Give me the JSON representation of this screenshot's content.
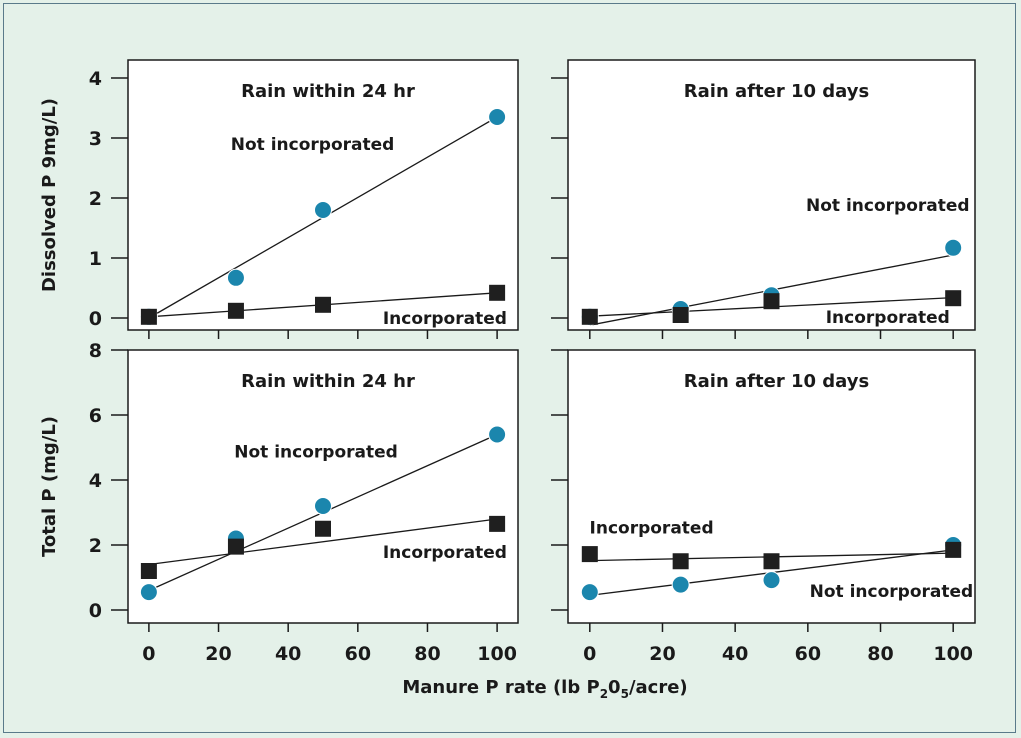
{
  "chart_data": {
    "type": "scatter",
    "x_label_parts": [
      "Manure P rate (lb P",
      "2",
      "0",
      "5",
      "/acre)"
    ],
    "panels": [
      {
        "id": "dissolved-24hr",
        "title": "Rain within 24 hr",
        "ylabel": "Dissolved P 9mg/L)",
        "xlim": [
          -6,
          106
        ],
        "ylim": [
          -0.2,
          4.3
        ],
        "xticks": [
          0,
          20,
          40,
          60,
          80,
          100
        ],
        "show_xtick_labels": false,
        "yticks": [
          0,
          1,
          2,
          3,
          4
        ],
        "show_ytick_labels": true,
        "series": [
          {
            "name": "Not incorporated",
            "marker": "circle",
            "color": "#1b86ad",
            "x": [
              0,
              25,
              50,
              100
            ],
            "y": [
              0.02,
              0.67,
              1.8,
              3.35
            ],
            "fit": [
              [
                0,
                0.0
              ],
              [
                100,
                3.35
              ]
            ]
          },
          {
            "name": "Incorporated",
            "marker": "square",
            "color": "#1f1f1f",
            "x": [
              0,
              25,
              50,
              100
            ],
            "y": [
              0.02,
              0.12,
              0.22,
              0.42
            ],
            "fit": [
              [
                0,
                0.02
              ],
              [
                100,
                0.42
              ]
            ]
          }
        ],
        "labels": [
          {
            "text": "Not incorporated",
            "x": 47,
            "y": 2.8
          },
          {
            "text": "Incorporated",
            "x": 85,
            "y": -0.1
          }
        ]
      },
      {
        "id": "dissolved-10days",
        "title": "Rain after 10 days",
        "ylabel": "",
        "xlim": [
          -6,
          106
        ],
        "ylim": [
          -0.2,
          4.3
        ],
        "xticks": [
          0,
          20,
          40,
          60,
          80,
          100
        ],
        "show_xtick_labels": false,
        "yticks": [
          0,
          1,
          2,
          3,
          4
        ],
        "show_ytick_labels": false,
        "series": [
          {
            "name": "Not incorporated",
            "marker": "circle",
            "color": "#1b86ad",
            "x": [
              0,
              25,
              50,
              100
            ],
            "y": [
              0.02,
              0.15,
              0.38,
              1.17
            ],
            "fit": [
              [
                0,
                -0.12
              ],
              [
                100,
                1.05
              ]
            ]
          },
          {
            "name": "Incorporated",
            "marker": "square",
            "color": "#1f1f1f",
            "x": [
              0,
              25,
              50,
              100
            ],
            "y": [
              0.02,
              0.05,
              0.28,
              0.33
            ],
            "fit": [
              [
                0,
                0.03
              ],
              [
                100,
                0.34
              ]
            ]
          }
        ],
        "labels": [
          {
            "text": "Not incorporated",
            "x": 82,
            "y": 1.78
          },
          {
            "text": "Incorporated",
            "x": 82,
            "y": -0.08
          }
        ]
      },
      {
        "id": "total-24hr",
        "title": "Rain within 24 hr",
        "ylabel": "Total P (mg/L)",
        "xlim": [
          -6,
          106
        ],
        "ylim": [
          -0.4,
          8.0
        ],
        "xticks": [
          0,
          20,
          40,
          60,
          80,
          100
        ],
        "show_xtick_labels": true,
        "yticks": [
          0,
          2,
          4,
          6,
          8
        ],
        "show_ytick_labels": true,
        "series": [
          {
            "name": "Not incorporated",
            "marker": "circle",
            "color": "#1b86ad",
            "x": [
              0,
              25,
              50,
              100
            ],
            "y": [
              0.55,
              2.2,
              3.2,
              5.4
            ],
            "fit": [
              [
                0,
                0.6
              ],
              [
                100,
                5.4
              ]
            ]
          },
          {
            "name": "Incorporated",
            "marker": "square",
            "color": "#1f1f1f",
            "x": [
              0,
              25,
              50,
              100
            ],
            "y": [
              1.2,
              1.95,
              2.5,
              2.65
            ],
            "fit": [
              [
                0,
                1.4
              ],
              [
                100,
                2.8
              ]
            ]
          }
        ],
        "labels": [
          {
            "text": "Not incorporated",
            "x": 48,
            "y": 4.7
          },
          {
            "text": "Incorporated",
            "x": 85,
            "y": 1.6
          }
        ]
      },
      {
        "id": "total-10days",
        "title": "Rain after 10 days",
        "ylabel": "",
        "xlim": [
          -6,
          106
        ],
        "ylim": [
          -0.4,
          8.0
        ],
        "xticks": [
          0,
          20,
          40,
          60,
          80,
          100
        ],
        "show_xtick_labels": true,
        "yticks": [
          0,
          2,
          4,
          6,
          8
        ],
        "show_ytick_labels": false,
        "series": [
          {
            "name": "Not incorporated",
            "marker": "circle",
            "color": "#1b86ad",
            "x": [
              0,
              25,
              50,
              100
            ],
            "y": [
              0.55,
              0.78,
              0.92,
              2.0
            ],
            "fit": [
              [
                0,
                0.45
              ],
              [
                100,
                1.85
              ]
            ]
          },
          {
            "name": "Incorporated",
            "marker": "square",
            "color": "#1f1f1f",
            "x": [
              0,
              25,
              50,
              100
            ],
            "y": [
              1.72,
              1.5,
              1.5,
              1.85
            ],
            "fit": [
              [
                0,
                1.52
              ],
              [
                100,
                1.75
              ]
            ]
          }
        ],
        "labels": [
          {
            "text": "Incorporated",
            "x": 17,
            "y": 2.35
          },
          {
            "text": "Not incorporated",
            "x": 83,
            "y": 0.4
          }
        ]
      }
    ]
  }
}
